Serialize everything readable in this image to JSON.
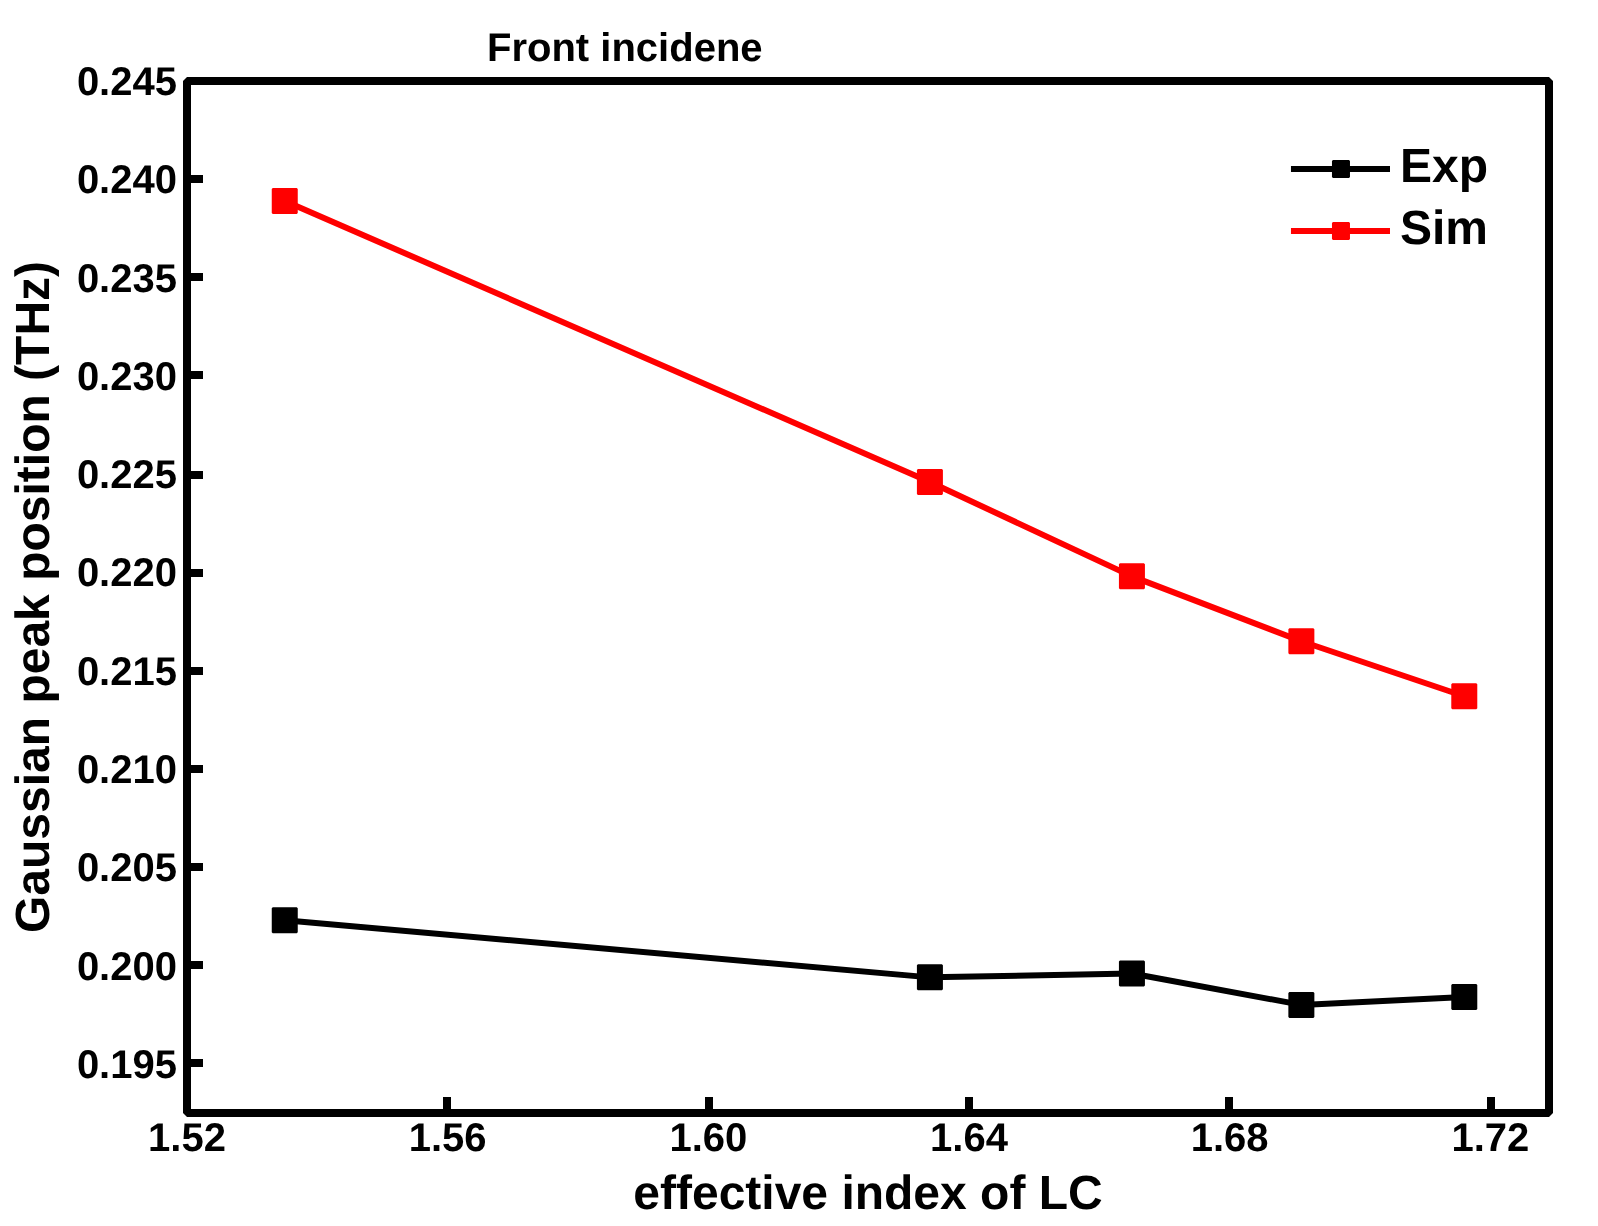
{
  "chart_data": {
    "type": "line",
    "title": "Front incidene",
    "xlabel": "effective index of LC",
    "ylabel": "Gaussian peak position (THz)",
    "x": [
      1.535,
      1.634,
      1.665,
      1.691,
      1.716
    ],
    "series": [
      {
        "name": "Exp",
        "color": "#000000",
        "values": [
          0.2023,
          0.1994,
          0.1996,
          0.198,
          0.1984
        ]
      },
      {
        "name": "Sim",
        "color": "#ff0000",
        "values": [
          0.2389,
          0.2246,
          0.2198,
          0.2165,
          0.2137
        ]
      }
    ],
    "xlim": [
      1.52,
      1.729
    ],
    "ylim": [
      0.1925,
      0.245
    ],
    "xticks": [
      1.52,
      1.56,
      {
        "value": 1.6,
        "label": "1.60"
      },
      1.64,
      1.68,
      1.72
    ],
    "yticks": [
      0.195,
      {
        "value": 0.2,
        "label": "0.200"
      },
      0.205,
      {
        "value": 0.21,
        "label": "0.210"
      },
      0.215,
      {
        "value": 0.22,
        "label": "0.220"
      },
      0.225,
      {
        "value": 0.23,
        "label": "0.230"
      },
      0.235,
      {
        "value": 0.24,
        "label": "0.240"
      },
      0.245
    ],
    "marker": "square",
    "line_style": "solid",
    "legend": "top right",
    "grid": false
  }
}
